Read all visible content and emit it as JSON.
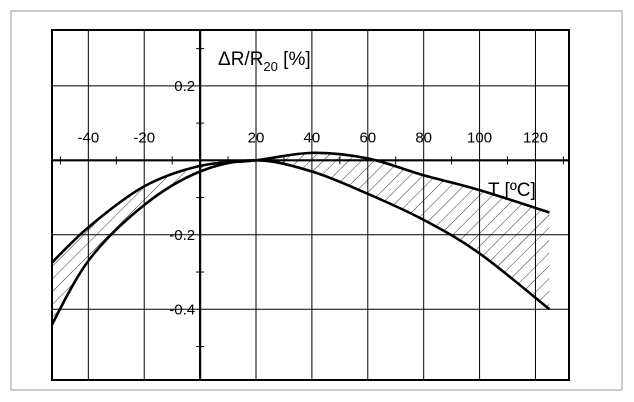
{
  "chart_data": {
    "type": "area",
    "title": "",
    "ylabel_main": "ΔR/R",
    "ylabel_sub": "20",
    "ylabel_unit": " [%]",
    "xlabel": "T [ºC]",
    "xlim": [
      -53,
      132
    ],
    "ylim": [
      -0.59,
      0.35
    ],
    "grid": true,
    "x_ticks": [
      -40,
      -20,
      20,
      40,
      60,
      80,
      100,
      120
    ],
    "x_tick_labels": [
      "-40",
      "-20",
      "20",
      "40",
      "60",
      "80",
      "100",
      "120"
    ],
    "y_ticks": [
      0.2,
      -0.2,
      -0.4
    ],
    "y_tick_labels": [
      "0.2",
      "-0.2",
      "-0.4"
    ],
    "x_gridlines": [
      -40,
      -20,
      20,
      40,
      60,
      80,
      100,
      120
    ],
    "y_gridlines": [
      0.2,
      -0.2,
      -0.4
    ],
    "x_minor_ticks": [
      -50,
      -30,
      -10,
      10,
      30,
      50,
      70,
      90,
      110,
      130
    ],
    "y_minor_ticks": [
      0.3,
      0.1,
      -0.1,
      -0.3,
      -0.5
    ],
    "series": [
      {
        "x": [
          -55,
          -40,
          -20,
          0,
          20,
          40,
          60,
          80,
          100,
          125
        ],
        "y": [
          -0.29,
          -0.18,
          -0.07,
          -0.015,
          0.0,
          0.02,
          0.005,
          -0.04,
          -0.08,
          -0.14
        ]
      },
      {
        "x": [
          -55,
          -40,
          -20,
          0,
          20,
          40,
          60,
          80,
          100,
          125
        ],
        "y": [
          -0.47,
          -0.27,
          -0.12,
          -0.03,
          0.0,
          -0.03,
          -0.09,
          -0.16,
          -0.25,
          -0.4
        ]
      }
    ],
    "shaded_band": true,
    "colors": {
      "line": "#000000",
      "grid": "#000000",
      "frame": "#9a9a9a"
    }
  }
}
